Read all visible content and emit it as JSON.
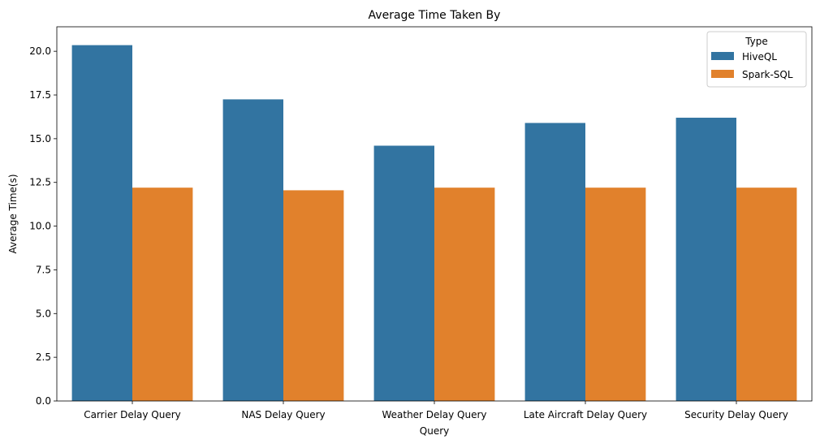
{
  "chart_data": {
    "type": "bar",
    "title": "Average Time Taken By",
    "xlabel": "Query",
    "ylabel": "Average Time(s)",
    "categories": [
      "Carrier Delay Query",
      "NAS Delay Query",
      "Weather Delay Query",
      "Late Aircraft Delay Query",
      "Security Delay Query"
    ],
    "series": [
      {
        "name": "HiveQL",
        "color": "#3274a1",
        "values": [
          20.35,
          17.25,
          14.6,
          15.9,
          16.2
        ]
      },
      {
        "name": "Spark-SQL",
        "color": "#e1812c",
        "values": [
          12.2,
          12.05,
          12.2,
          12.2,
          12.2
        ]
      }
    ],
    "ylim": [
      0,
      21.4
    ],
    "yticks": [
      0.0,
      2.5,
      5.0,
      7.5,
      10.0,
      12.5,
      15.0,
      17.5,
      20.0
    ],
    "grid": false,
    "legend": {
      "title": "Type",
      "placement": "top-right"
    }
  }
}
